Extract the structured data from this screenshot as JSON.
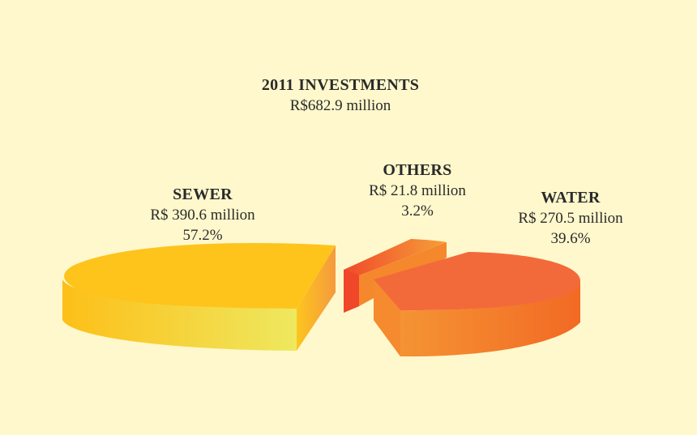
{
  "chart_data": {
    "type": "pie",
    "title": "2011 INVESTMENTS",
    "subtitle": "R$682.9 million",
    "slices": [
      {
        "name": "SEWER",
        "amount": "R$ 390.6 million",
        "percent": "57.2%",
        "value": 57.2,
        "top": "#fec41c",
        "side": "#f4d63a",
        "inner": "#f4a83a"
      },
      {
        "name": "OTHERS",
        "amount": "R$ 21.8 million",
        "percent": "3.2%",
        "value": 3.2,
        "top": "#f5492a",
        "side": "#e8221a",
        "inner": "#f58a3a"
      },
      {
        "name": "WATER",
        "amount": "R$ 270.5 million",
        "percent": "39.6%",
        "value": 39.6,
        "top": "#f36a3a",
        "side": "#f5822e",
        "inner": "#f36a3a"
      }
    ]
  }
}
